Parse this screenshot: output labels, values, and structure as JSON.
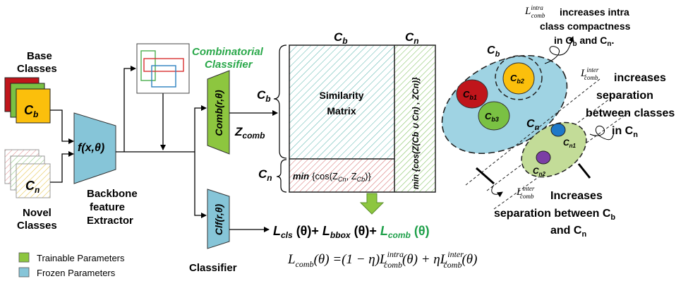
{
  "input": {
    "base_label_line1": "Base",
    "base_label_line2": "Classes",
    "base_card_label": "C",
    "base_card_sub": "b",
    "novel_card_label": "C",
    "novel_card_sub": "n",
    "novel_label_line1": "Novel",
    "novel_label_line2": "Classes"
  },
  "backbone": {
    "func_label": "f(x,θ)",
    "caption_line1": "Backbone",
    "caption_line2": "feature",
    "caption_line3": "Extractor"
  },
  "combinatorial": {
    "title_line1": "Combinatorial",
    "title_line2": "Classifier",
    "block_label": "Comb(r,θ)",
    "output_label": "Z",
    "output_sub": "comb"
  },
  "classifier": {
    "block_label": "Clf(r,θ)",
    "caption": "Classifier"
  },
  "matrix": {
    "col_cb": "C",
    "col_cb_sub": "b",
    "col_cn": "C",
    "col_cn_sub": "n",
    "row_cb": "C",
    "row_cb_sub": "b",
    "row_cn": "C",
    "row_cn_sub": "n",
    "center_line1": "Similarity",
    "center_line2": "Matrix",
    "bottom_text_prefix": "min",
    "bottom_text_body": "{cos(Z",
    "bottom_text_sub1": "Cn",
    "bottom_text_mid": ", Z",
    "bottom_text_sub2": "Cb",
    "bottom_text_end": ")}",
    "right_text": "min {cos(Z(Cb ∪ Cn) , ZCn)}"
  },
  "loss": {
    "part1": "L",
    "part1_sub": "cls",
    "part1_rest": " (θ)+ ",
    "part2": "L",
    "part2_sub": "bbox",
    "part2_rest": " (θ)+ ",
    "part3": "L",
    "part3_sub": "comb",
    "part3_rest": " (θ)"
  },
  "formula": {
    "lhs": "L",
    "lhs_sub": "comb",
    "lhs_arg": "(θ) =(1 − η)L",
    "intra_sup": "intra",
    "intra_sub": "comb",
    "mid": "(θ) + ηL",
    "inter_sup": "inter",
    "inter_sub": "comb",
    "end": "(θ)"
  },
  "right_panel": {
    "intra_note_L": "L",
    "intra_note_sup": "intra",
    "intra_note_sub": "comb",
    "intra_note_line1": "increases intra",
    "intra_note_line2": "class compactness",
    "intra_note_line3_a": "in C",
    "intra_note_line3_b": "b",
    "intra_note_line3_c": " and C",
    "intra_note_line3_d": "n",
    "intra_note_line3_e": ".",
    "inter_note_L": "L",
    "inter_note_sup": "inter",
    "inter_note_sub": "comb",
    "inter_note_line1": "increases",
    "inter_note_line2": "separation",
    "inter_note_line3": "between classes",
    "inter_note_line4_a": "in C",
    "inter_note_line4_b": "n",
    "bottom_note_L": "L",
    "bottom_note_sup": "inter",
    "bottom_note_sub": "comb",
    "bottom_note_line1": "Increases",
    "bottom_note_line2_a": "separation between C",
    "bottom_note_line2_b": "b",
    "bottom_note_line3_a": "and C",
    "bottom_note_line3_b": "n",
    "cb_label": "C",
    "cb_sub": "b",
    "cb1": "C",
    "cb1_sub": "b1",
    "cb2": "C",
    "cb2_sub": "b2",
    "cb3": "C",
    "cb3_sub": "b3",
    "cn_label": "C",
    "cn_sub": "n",
    "cn1": "C",
    "cn1_sub": "n1",
    "cn2": "C",
    "cn2_sub": "n2"
  },
  "legend": {
    "trainable": "Trainable Parameters",
    "frozen": "Frozen Parameters"
  },
  "colors": {
    "trainable": "#8dc63f",
    "frozen": "#86c5d8",
    "loss_green": "#1fa04a",
    "title_green": "#2aa84a",
    "cb_ellipse": "#9fd3e3",
    "cn_ellipse": "#c3dc98"
  }
}
